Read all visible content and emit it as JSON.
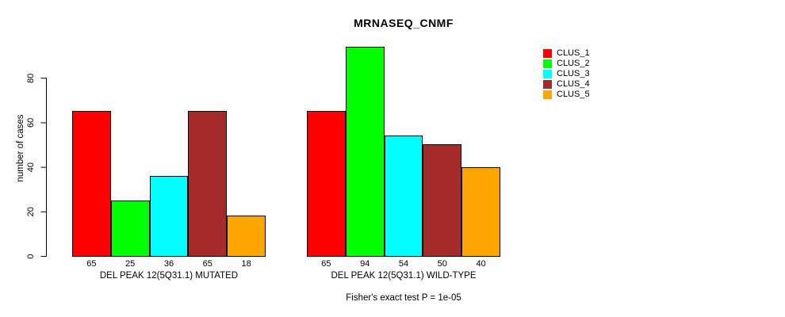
{
  "title": "MRNASEQ_CNMF",
  "footer": "Fisher's exact test P = 1e-05",
  "chart_data": {
    "type": "bar",
    "title": "MRNASEQ_CNMF",
    "xlabel": "",
    "ylabel": "number of cases",
    "yticks": [
      0,
      20,
      40,
      60,
      80
    ],
    "ylim": [
      0,
      94
    ],
    "grid": false,
    "legend_position": "right",
    "bar_value_labels_shown": true,
    "categories": [
      "DEL PEAK 12(5Q31.1) MUTATED",
      "DEL PEAK 12(5Q31.1) WILD-TYPE"
    ],
    "series": [
      {
        "name": "CLUS_1",
        "color": "#ff0000",
        "values": [
          65,
          65
        ]
      },
      {
        "name": "CLUS_2",
        "color": "#00ff00",
        "values": [
          25,
          94
        ]
      },
      {
        "name": "CLUS_3",
        "color": "#00ffff",
        "values": [
          36,
          54
        ]
      },
      {
        "name": "CLUS_4",
        "color": "#a52a2a",
        "values": [
          65,
          50
        ]
      },
      {
        "name": "CLUS_5",
        "color": "#ffa500",
        "values": [
          18,
          40
        ]
      }
    ],
    "annotation": "Fisher's exact test P = 1e-05"
  }
}
